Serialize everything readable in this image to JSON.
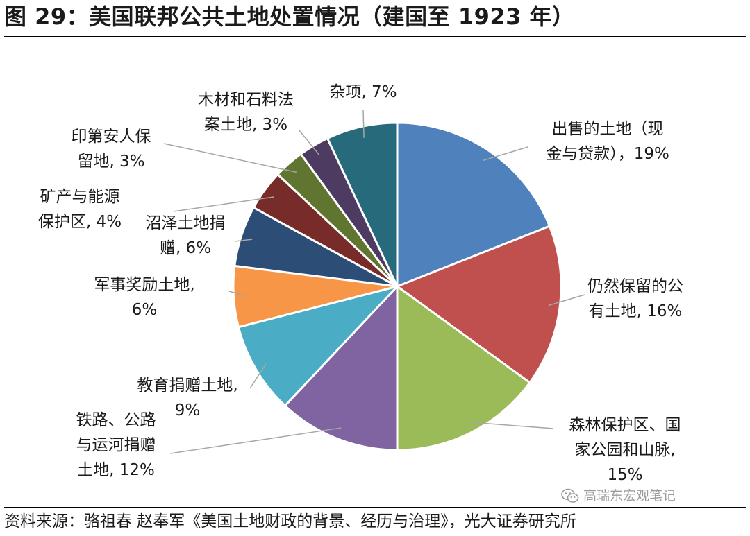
{
  "figure": {
    "title": "图 29：美国联邦公共土地处置情况（建国至 1923 年）",
    "source": "资料来源：骆祖春 赵奉军《美国土地财政的背景、经历与治理》，光大证券研究所",
    "watermark": "高瑞东宏观笔记",
    "watermark_icon": "wechat-icon"
  },
  "chart_data": {
    "type": "pie",
    "title": "",
    "unit": "%",
    "start_angle_deg": 0,
    "direction": "clockwise",
    "slices": [
      {
        "name": "出售的土地（现金与贷款）",
        "value": 19,
        "label_lines": [
          "出售的土地（现",
          "金与贷款），19%"
        ],
        "color": "#4F81BD"
      },
      {
        "name": "仍然保留的公有土地",
        "value": 16,
        "label_lines": [
          "仍然保留的公",
          "有土地, 16%"
        ],
        "color": "#C0504D"
      },
      {
        "name": "森林保护区、国家公园和山脉",
        "value": 15,
        "label_lines": [
          "森林保护区、国",
          "家公园和山脉,",
          "15%"
        ],
        "color": "#9BBB59"
      },
      {
        "name": "铁路、公路与运河捐赠土地",
        "value": 12,
        "label_lines": [
          "铁路、公路",
          "与运河捐赠",
          "土地, 12%"
        ],
        "color": "#8064A2"
      },
      {
        "name": "教育捐赠土地",
        "value": 9,
        "label_lines": [
          "教育捐赠土地,",
          "9%"
        ],
        "color": "#4BACC6"
      },
      {
        "name": "军事奖励土地",
        "value": 6,
        "label_lines": [
          "军事奖励土地,",
          "6%"
        ],
        "color": "#F79646"
      },
      {
        "name": "沼泽土地捐赠",
        "value": 6,
        "label_lines": [
          "沼泽土地捐",
          "赠, 6%"
        ],
        "color": "#2C4D75"
      },
      {
        "name": "矿产与能源保护区",
        "value": 4,
        "label_lines": [
          "矿产与能源",
          "保护区, 4%"
        ],
        "color": "#772C2A"
      },
      {
        "name": "印第安人保留地",
        "value": 3,
        "label_lines": [
          "印第安人保",
          "留地, 3%"
        ],
        "color": "#5F7530"
      },
      {
        "name": "木材和石料法案土地",
        "value": 3,
        "label_lines": [
          "木材和石料法",
          "案土地, 3%"
        ],
        "color": "#4D3B62"
      },
      {
        "name": "杂项",
        "value": 7,
        "label_lines": [
          "杂项, 7%"
        ],
        "color": "#276A7C"
      }
    ]
  }
}
